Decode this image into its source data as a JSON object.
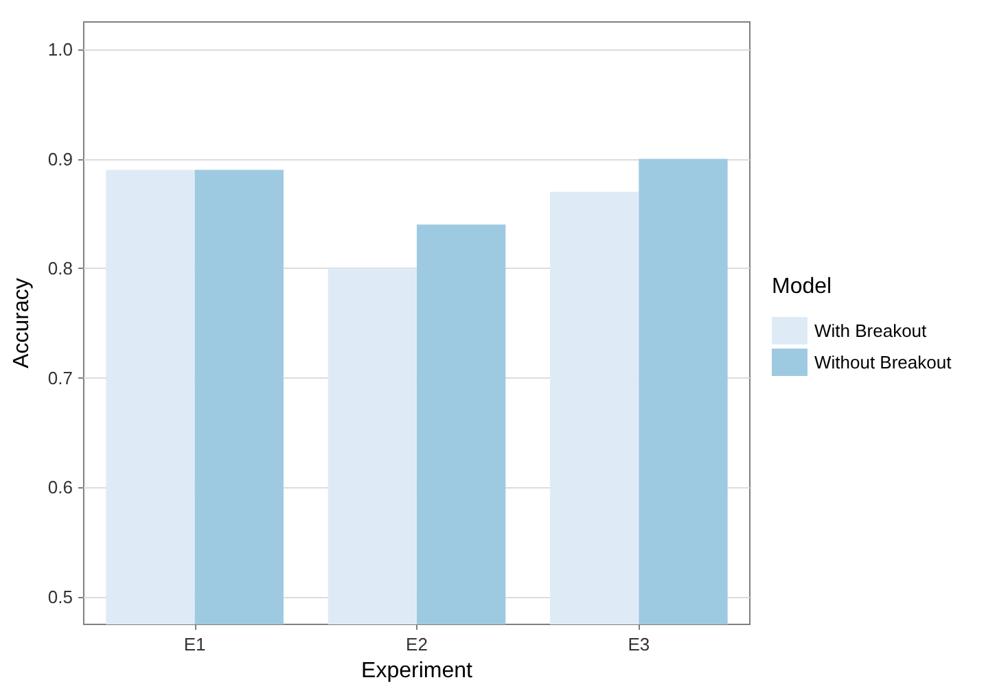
{
  "chart_data": {
    "type": "bar",
    "xlabel": "Experiment",
    "ylabel": "Accuracy",
    "legend_title": "Model",
    "categories": [
      "E1",
      "E2",
      "E3"
    ],
    "series": [
      {
        "name": "With Breakout",
        "color": "#deebf7",
        "values": [
          0.89,
          0.8,
          0.87
        ]
      },
      {
        "name": "Without Breakout",
        "color": "#9ecae1",
        "values": [
          0.89,
          0.84,
          0.9
        ]
      }
    ],
    "ylim": [
      0.475,
      1.025
    ],
    "yticks": [
      0.5,
      0.6,
      0.7,
      0.8,
      0.9,
      {
        "value": 1.0,
        "label": "1.0"
      }
    ],
    "grid": true,
    "legend": "right"
  }
}
